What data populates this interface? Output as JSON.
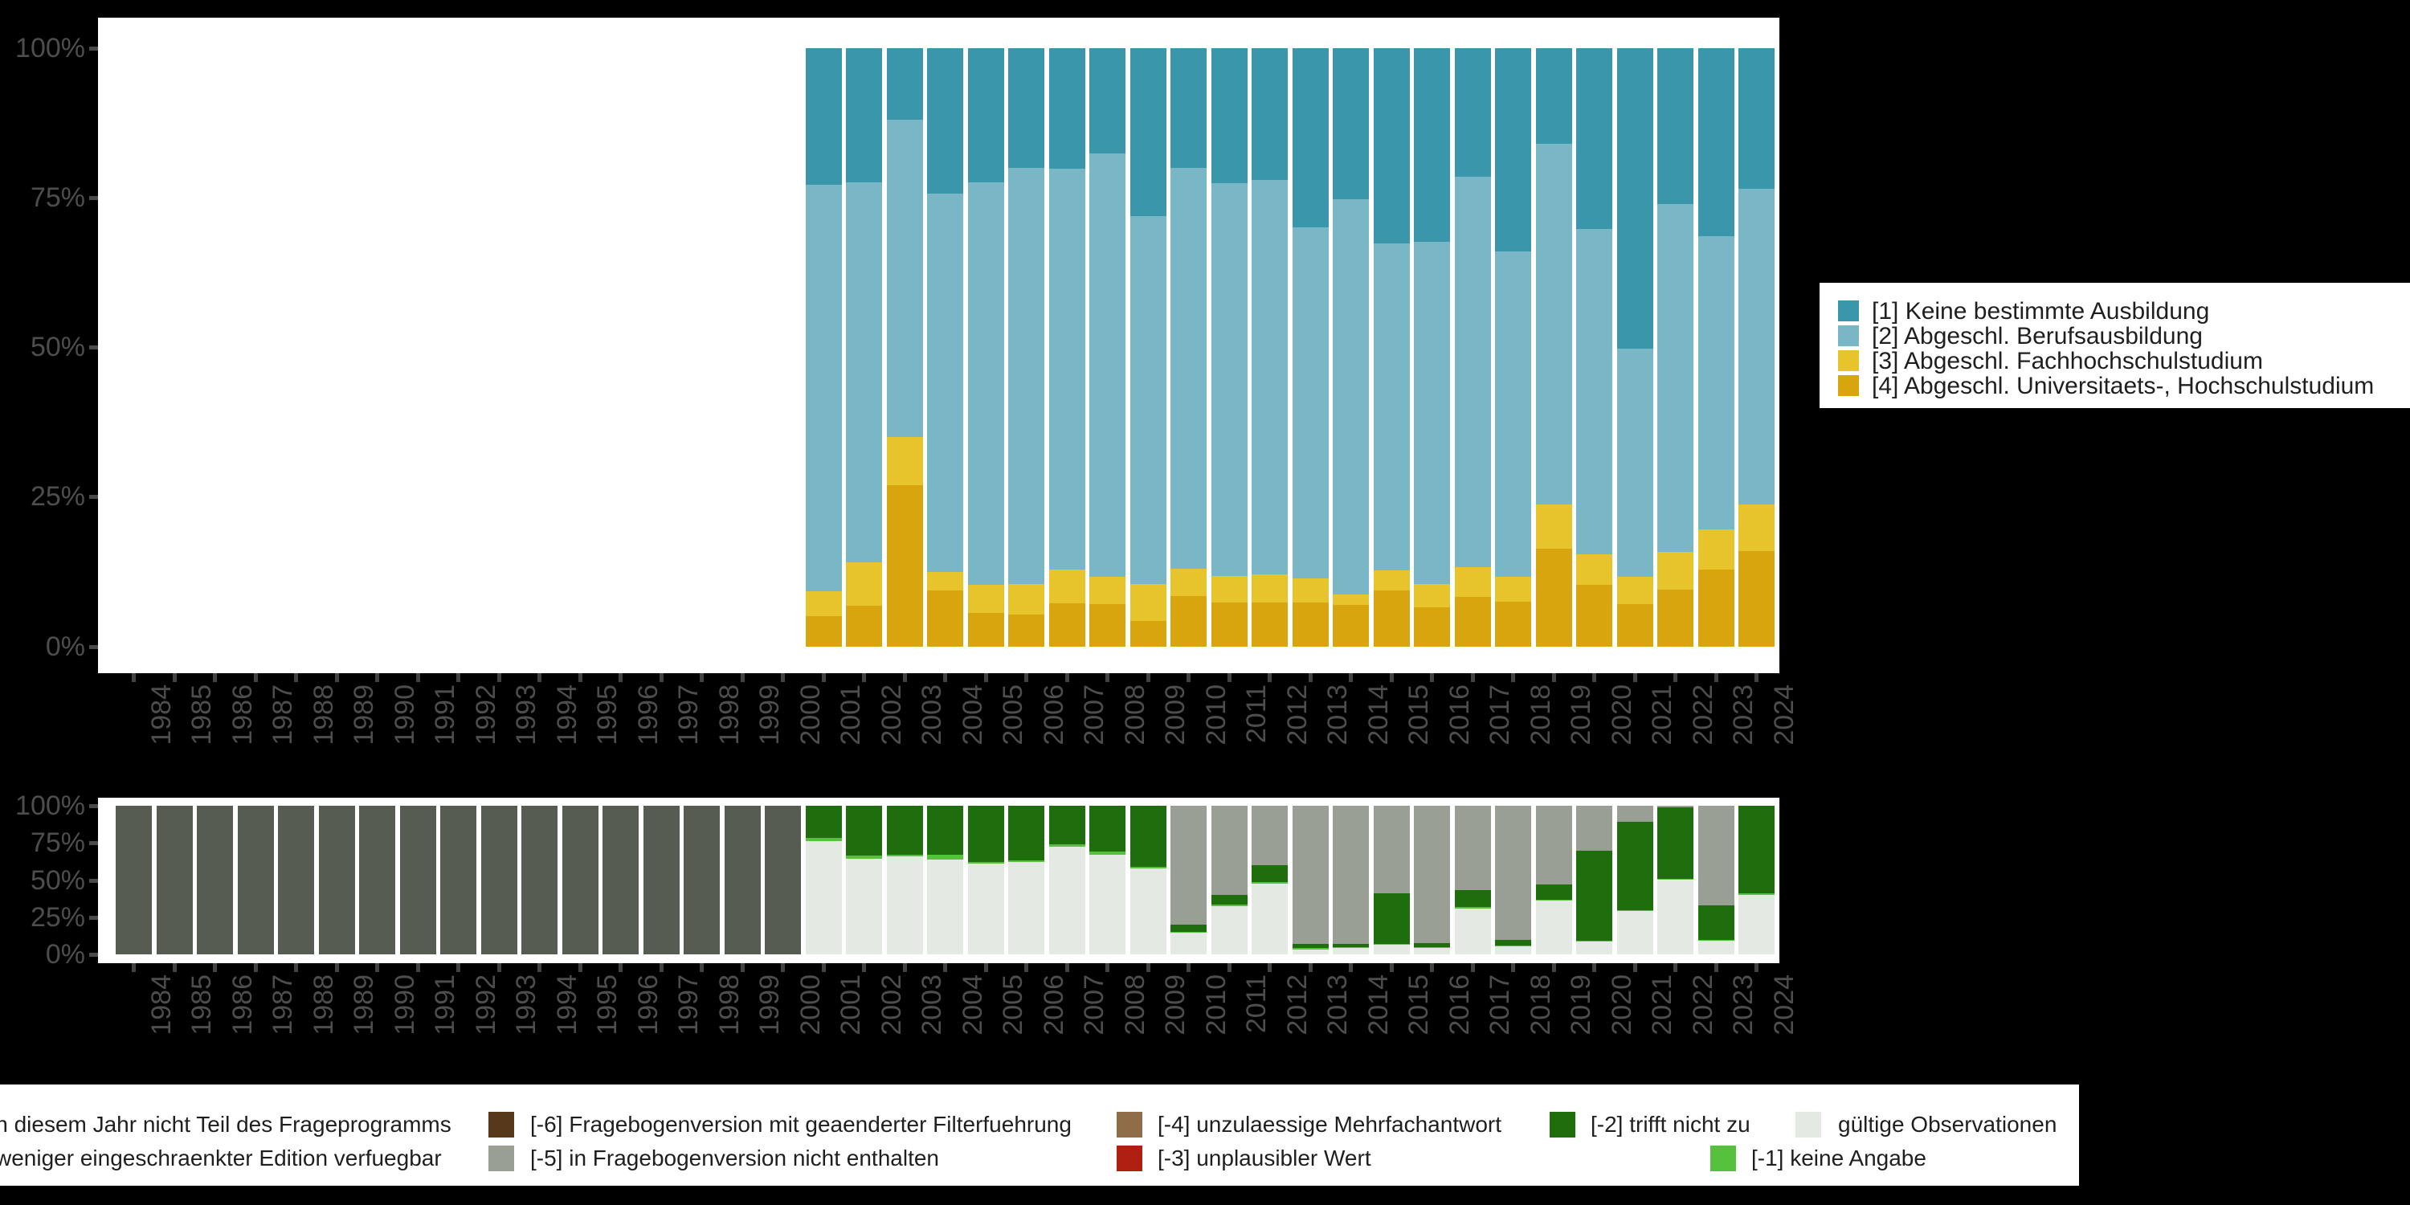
{
  "colors": {
    "background": "#000000",
    "panel": "#ffffff",
    "axis_text": "#4d4d4d",
    "tick": "#424242",
    "legend_text": "#1f1f1f",
    "cat1_teal": "#3a96ab",
    "cat2_lightblue": "#7ab7c6",
    "cat3_yellow": "#e8c42c",
    "cat4_gold": "#d8a50f",
    "not_surveyed_darkgray": "#575c53",
    "minus5_gray": "#9a9f96",
    "minus6_brown": "#57381b",
    "minus4_tan": "#8f6d48",
    "minus3_red": "#af2012",
    "minus2_darkgreen": "#1f6e0d",
    "minus1_lightgreen": "#56c13c",
    "valid_lightgray": "#e5e9e3"
  },
  "axis": {
    "y_tick_labels": [
      "100%",
      "75%",
      "50%",
      "25%",
      "0%"
    ],
    "years": [
      "1984",
      "1985",
      "1986",
      "1987",
      "1988",
      "1989",
      "1990",
      "1991",
      "1992",
      "1993",
      "1994",
      "1995",
      "1996",
      "1997",
      "1998",
      "1999",
      "2000",
      "2001",
      "2002",
      "2003",
      "2004",
      "2005",
      "2006",
      "2007",
      "2008",
      "2009",
      "2010",
      "2011",
      "2012",
      "2013",
      "2014",
      "2015",
      "2016",
      "2017",
      "2018",
      "2019",
      "2020",
      "2021",
      "2022",
      "2023",
      "2024"
    ]
  },
  "top_legend": {
    "items": [
      {
        "label": "[1] Keine bestimmte Ausbildung",
        "color": "#3a96ab"
      },
      {
        "label": "[2] Abgeschl. Berufsausbildung",
        "color": "#7ab7c6"
      },
      {
        "label": "[3] Abgeschl. Fachhochschulstudium",
        "color": "#e8c42c"
      },
      {
        "label": "[4] Abgeschl. Universitaets-, Hochschulstudium",
        "color": "#d8a50f"
      }
    ]
  },
  "bottom_legend": {
    "rows": [
      [
        {
          "label": "in diesem Jahr nicht Teil des Frageprogramms",
          "color": "#575c53"
        },
        {
          "label": "[-6] Fragebogenversion mit geaenderter Filterfuehrung",
          "color": "#57381b"
        },
        {
          "label": "[-4] unzulaessige Mehrfachantwort",
          "color": "#8f6d48"
        },
        {
          "label": "[-2] trifft nicht zu",
          "color": "#1f6e0d"
        },
        {
          "label": "gültige Observationen",
          "color": "#e5e9e3"
        }
      ],
      [
        {
          "label": "weniger eingeschraenkter Edition verfuegbar",
          "color": "#9a9f96"
        },
        {
          "label": "[-5] in Fragebogenversion nicht enthalten",
          "color": "#9a9f96"
        },
        {
          "label": "[-3] unplausibler Wert",
          "color": "#af2012"
        },
        {
          "label": "[-1] keine Angabe",
          "color": "#56c13c"
        }
      ]
    ]
  },
  "chart_data": [
    {
      "type": "bar",
      "stacked": true,
      "unit": "percent",
      "title": "",
      "ylim": [
        0,
        100
      ],
      "yticks": [
        "0%",
        "25%",
        "50%",
        "75%",
        "100%"
      ],
      "grid": false,
      "legend_position": "right",
      "categories": [
        "1984",
        "1985",
        "1986",
        "1987",
        "1988",
        "1989",
        "1990",
        "1991",
        "1992",
        "1993",
        "1994",
        "1995",
        "1996",
        "1997",
        "1998",
        "1999",
        "2000",
        "2001",
        "2002",
        "2003",
        "2004",
        "2005",
        "2006",
        "2007",
        "2008",
        "2009",
        "2010",
        "2011",
        "2012",
        "2013",
        "2014",
        "2015",
        "2016",
        "2017",
        "2018",
        "2019",
        "2020",
        "2021",
        "2022",
        "2023",
        "2024"
      ],
      "note": "no bars rendered for 1984-2000",
      "series": [
        {
          "name": "[1] Keine bestimmte Ausbildung",
          "color": "#3a96ab",
          "values": [
            0,
            0,
            0,
            0,
            0,
            0,
            0,
            0,
            0,
            0,
            0,
            0,
            0,
            0,
            0,
            0,
            0,
            22.8,
            22.4,
            12,
            24.3,
            22.4,
            20,
            20.1,
            17.6,
            28,
            20,
            22.5,
            22,
            29.9,
            25.2,
            32.6,
            32.4,
            21.5,
            34,
            16,
            30.2,
            50.2,
            26,
            31.4,
            23.5
          ]
        },
        {
          "name": "[2] Abgeschl. Berufsausbildung",
          "color": "#7ab7c6",
          "values": [
            0,
            0,
            0,
            0,
            0,
            0,
            0,
            0,
            0,
            0,
            0,
            0,
            0,
            0,
            0,
            0,
            0,
            67.9,
            63.5,
            53,
            63.2,
            67.3,
            69.5,
            67,
            70.7,
            61.5,
            67,
            65.7,
            65.9,
            58.7,
            66.1,
            54.6,
            57.1,
            65.2,
            54.3,
            60.2,
            54.4,
            38.1,
            58.2,
            49,
            52.7
          ]
        },
        {
          "name": "[3] Abgeschl. Fachhochschulstudium",
          "color": "#e8c42c",
          "values": [
            0,
            0,
            0,
            0,
            0,
            0,
            0,
            0,
            0,
            0,
            0,
            0,
            0,
            0,
            0,
            0,
            0,
            4.2,
            7.3,
            8,
            3.1,
            4.7,
            5.1,
            5.7,
            4.6,
            6.2,
            4.5,
            4.4,
            4.7,
            4,
            1.7,
            3.4,
            3.9,
            5,
            4.2,
            7.4,
            5.1,
            4.6,
            6.3,
            6.7,
            7.8
          ]
        },
        {
          "name": "[4] Abgeschl. Universitaets-, Hochschulstudium",
          "color": "#d8a50f",
          "values": [
            0,
            0,
            0,
            0,
            0,
            0,
            0,
            0,
            0,
            0,
            0,
            0,
            0,
            0,
            0,
            0,
            0,
            5.1,
            6.8,
            27,
            9.4,
            5.6,
            5.4,
            7.2,
            7.1,
            4.3,
            8.5,
            7.4,
            7.4,
            7.4,
            7,
            9.4,
            6.6,
            8.3,
            7.5,
            16.4,
            10.3,
            7.1,
            9.5,
            12.9,
            16
          ]
        }
      ]
    },
    {
      "type": "bar",
      "stacked": true,
      "unit": "percent",
      "title": "",
      "ylim": [
        0,
        100
      ],
      "yticks": [
        "0%",
        "25%",
        "50%",
        "75%",
        "100%"
      ],
      "grid": false,
      "legend_position": "bottom",
      "categories": [
        "1984",
        "1985",
        "1986",
        "1987",
        "1988",
        "1989",
        "1990",
        "1991",
        "1992",
        "1993",
        "1994",
        "1995",
        "1996",
        "1997",
        "1998",
        "1999",
        "2000",
        "2001",
        "2002",
        "2003",
        "2004",
        "2005",
        "2006",
        "2007",
        "2008",
        "2009",
        "2010",
        "2011",
        "2012",
        "2013",
        "2014",
        "2015",
        "2016",
        "2017",
        "2018",
        "2019",
        "2020",
        "2021",
        "2022",
        "2023",
        "2024"
      ],
      "series": [
        {
          "name": "in diesem Jahr nicht Teil des Frageprogramms",
          "color": "#575c53",
          "values": [
            100,
            100,
            100,
            100,
            100,
            100,
            100,
            100,
            100,
            100,
            100,
            100,
            100,
            100,
            100,
            100,
            100,
            0,
            0,
            0,
            0,
            0,
            0,
            0,
            0,
            0,
            0,
            0,
            0,
            0,
            0,
            0,
            0,
            0,
            0,
            0,
            0,
            0,
            0,
            0,
            0
          ]
        },
        {
          "name": "[-5] in Fragebogenversion nicht enthalten",
          "color": "#9a9f96",
          "values": [
            0,
            0,
            0,
            0,
            0,
            0,
            0,
            0,
            0,
            0,
            0,
            0,
            0,
            0,
            0,
            0,
            0,
            0,
            0,
            0,
            0,
            0,
            0,
            0,
            0,
            0,
            80,
            60,
            40,
            93,
            93,
            59,
            92.5,
            57,
            90.5,
            53,
            30,
            11,
            1,
            67,
            0
          ]
        },
        {
          "name": "[-2] trifft nicht zu",
          "color": "#1f6e0d",
          "values": [
            0,
            0,
            0,
            0,
            0,
            0,
            0,
            0,
            0,
            0,
            0,
            0,
            0,
            0,
            0,
            0,
            0,
            21.8,
            33.6,
            33,
            33,
            37.7,
            36.6,
            26,
            31,
            41,
            4.8,
            6.7,
            11.6,
            2.5,
            2,
            34,
            2.5,
            11,
            3.5,
            10,
            61,
            59.5,
            48,
            23.5,
            59
          ]
        },
        {
          "name": "[-1] keine Angabe",
          "color": "#56c13c",
          "values": [
            0,
            0,
            0,
            0,
            0,
            0,
            0,
            0,
            0,
            0,
            0,
            0,
            0,
            0,
            0,
            0,
            0,
            1.8,
            2,
            1,
            3,
            1.4,
            1.4,
            1.4,
            1.8,
            1,
            0.5,
            0.8,
            1,
            1.5,
            0.3,
            0.3,
            0.3,
            1,
            0.3,
            0.5,
            0.5,
            0.5,
            1,
            0.5,
            1
          ]
        },
        {
          "name": "gültige Observationen",
          "color": "#e5e9e3",
          "values": [
            0,
            0,
            0,
            0,
            0,
            0,
            0,
            0,
            0,
            0,
            0,
            0,
            0,
            0,
            0,
            0,
            0,
            76.4,
            64.4,
            66,
            64,
            60.9,
            62,
            72.6,
            67.2,
            58,
            14.7,
            32.5,
            47.4,
            3,
            4.7,
            6.7,
            4.7,
            31,
            5.7,
            36.5,
            8.5,
            29,
            50,
            9,
            40
          ]
        }
      ]
    }
  ]
}
